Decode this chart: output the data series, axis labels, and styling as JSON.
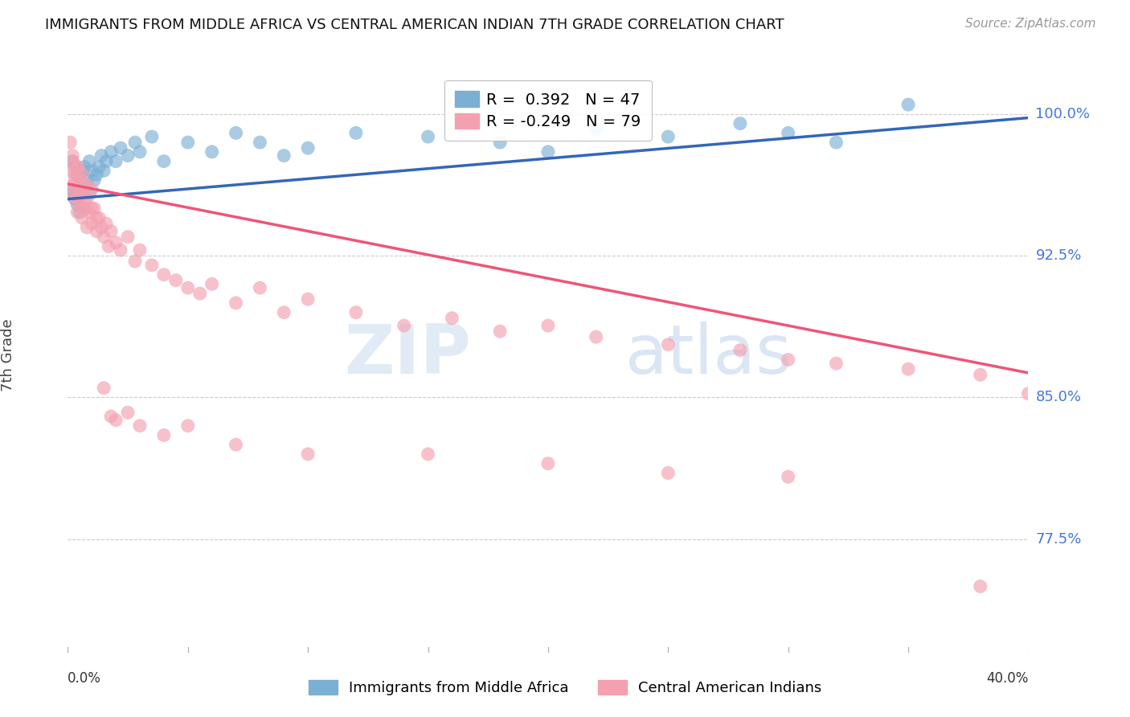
{
  "title": "IMMIGRANTS FROM MIDDLE AFRICA VS CENTRAL AMERICAN INDIAN 7TH GRADE CORRELATION CHART",
  "source": "Source: ZipAtlas.com",
  "ylabel": "7th Grade",
  "yticks": [
    0.775,
    0.85,
    0.925,
    1.0
  ],
  "ytick_labels": [
    "77.5%",
    "85.0%",
    "92.5%",
    "100.0%"
  ],
  "xlim": [
    0.0,
    0.4
  ],
  "ylim": [
    0.715,
    1.03
  ],
  "blue_R": 0.392,
  "blue_N": 47,
  "pink_R": -0.249,
  "pink_N": 79,
  "blue_color": "#7BAFD4",
  "pink_color": "#F4A0B0",
  "blue_line_color": "#3366BB",
  "pink_line_color": "#EE5577",
  "blue_label": "Immigrants from Middle Africa",
  "pink_label": "Central American Indians",
  "watermark_zip": "ZIP",
  "watermark_atlas": "atlas",
  "blue_line_x": [
    0.0,
    0.4
  ],
  "blue_line_y": [
    0.955,
    0.998
  ],
  "pink_line_x": [
    0.0,
    0.4
  ],
  "pink_line_y": [
    0.963,
    0.863
  ],
  "blue_scatter_x": [
    0.001,
    0.002,
    0.002,
    0.003,
    0.003,
    0.004,
    0.004,
    0.005,
    0.005,
    0.006,
    0.006,
    0.007,
    0.007,
    0.008,
    0.009,
    0.009,
    0.01,
    0.011,
    0.012,
    0.013,
    0.014,
    0.015,
    0.016,
    0.018,
    0.02,
    0.022,
    0.025,
    0.028,
    0.03,
    0.035,
    0.04,
    0.05,
    0.06,
    0.07,
    0.08,
    0.09,
    0.1,
    0.12,
    0.15,
    0.18,
    0.2,
    0.22,
    0.25,
    0.28,
    0.3,
    0.32,
    0.35
  ],
  "blue_scatter_y": [
    0.96,
    0.975,
    0.958,
    0.972,
    0.955,
    0.968,
    0.952,
    0.965,
    0.948,
    0.97,
    0.958,
    0.972,
    0.96,
    0.965,
    0.975,
    0.958,
    0.97,
    0.965,
    0.968,
    0.972,
    0.978,
    0.97,
    0.975,
    0.98,
    0.975,
    0.982,
    0.978,
    0.985,
    0.98,
    0.988,
    0.975,
    0.985,
    0.98,
    0.99,
    0.985,
    0.978,
    0.982,
    0.99,
    0.988,
    0.985,
    0.98,
    0.992,
    0.988,
    0.995,
    0.99,
    0.985,
    1.005
  ],
  "pink_scatter_x": [
    0.001,
    0.001,
    0.002,
    0.002,
    0.003,
    0.003,
    0.004,
    0.004,
    0.005,
    0.005,
    0.006,
    0.006,
    0.007,
    0.007,
    0.008,
    0.008,
    0.009,
    0.01,
    0.01,
    0.011,
    0.012,
    0.013,
    0.014,
    0.015,
    0.016,
    0.017,
    0.018,
    0.02,
    0.022,
    0.025,
    0.028,
    0.03,
    0.035,
    0.04,
    0.045,
    0.05,
    0.055,
    0.06,
    0.07,
    0.08,
    0.09,
    0.1,
    0.12,
    0.14,
    0.16,
    0.18,
    0.2,
    0.22,
    0.25,
    0.28,
    0.3,
    0.32,
    0.35,
    0.38,
    0.4,
    0.001,
    0.002,
    0.003,
    0.004,
    0.005,
    0.006,
    0.007,
    0.008,
    0.01,
    0.012,
    0.015,
    0.018,
    0.02,
    0.025,
    0.03,
    0.04,
    0.05,
    0.07,
    0.1,
    0.15,
    0.2,
    0.25,
    0.3,
    0.38
  ],
  "pink_scatter_y": [
    0.97,
    0.958,
    0.975,
    0.962,
    0.968,
    0.955,
    0.972,
    0.948,
    0.965,
    0.952,
    0.958,
    0.945,
    0.962,
    0.95,
    0.955,
    0.94,
    0.948,
    0.96,
    0.942,
    0.95,
    0.938,
    0.945,
    0.94,
    0.935,
    0.942,
    0.93,
    0.938,
    0.932,
    0.928,
    0.935,
    0.922,
    0.928,
    0.92,
    0.915,
    0.912,
    0.908,
    0.905,
    0.91,
    0.9,
    0.908,
    0.895,
    0.902,
    0.895,
    0.888,
    0.892,
    0.885,
    0.888,
    0.882,
    0.878,
    0.875,
    0.87,
    0.868,
    0.865,
    0.862,
    0.852,
    0.985,
    0.978,
    0.965,
    0.972,
    0.96,
    0.968,
    0.955,
    0.962,
    0.95,
    0.945,
    0.855,
    0.84,
    0.838,
    0.842,
    0.835,
    0.83,
    0.835,
    0.825,
    0.82,
    0.82,
    0.815,
    0.81,
    0.808,
    0.75
  ]
}
